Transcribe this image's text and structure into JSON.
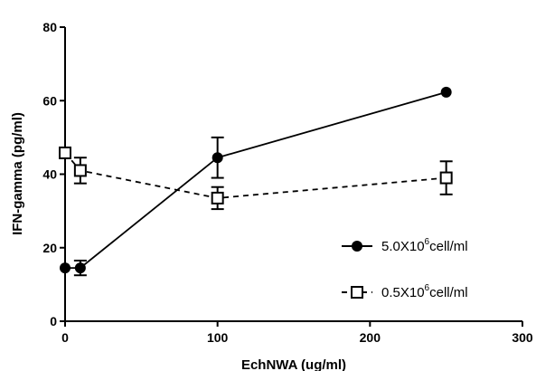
{
  "chart_data": {
    "type": "line",
    "xlabel": "EchNWA (ug/ml)",
    "ylabel": "IFN-gamma (pg/ml)",
    "xlim": [
      0,
      300
    ],
    "ylim": [
      0,
      80
    ],
    "xticks": [
      0,
      100,
      200,
      300
    ],
    "yticks": [
      0,
      20,
      40,
      60,
      80
    ],
    "grid": false,
    "legend_position": "bottom-right",
    "series": [
      {
        "name_prefix": "5.0X10",
        "name_sup": "6",
        "name_suffix": "cell/ml",
        "marker": "filled-circle",
        "line_style": "solid",
        "x": [
          0,
          10,
          100,
          250
        ],
        "y": [
          14.5,
          14.5,
          44.5,
          62.3
        ],
        "err": [
          0,
          2,
          5.5,
          0
        ]
      },
      {
        "name_prefix": "0.5X10",
        "name_sup": "6",
        "name_suffix": "cell/ml",
        "marker": "open-square",
        "line_style": "dashed",
        "x": [
          0,
          10,
          100,
          250
        ],
        "y": [
          45.8,
          41,
          33.5,
          39
        ],
        "err": [
          0,
          3.5,
          3,
          4.5
        ]
      }
    ]
  }
}
